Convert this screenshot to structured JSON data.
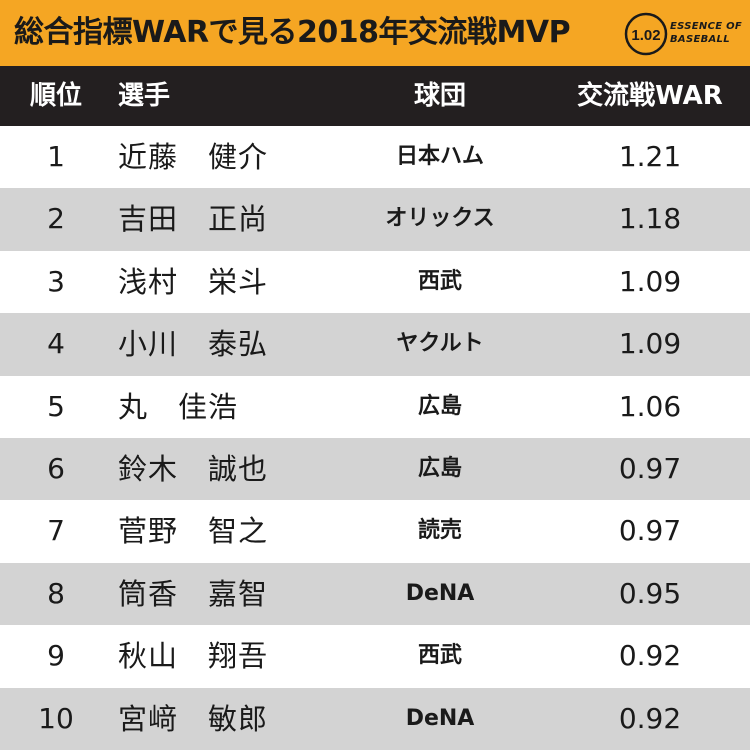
{
  "title": "総合指標WARで見る2018年交流戦MVP",
  "logo": {
    "number": "1.02",
    "line1": "ESSENCE OF",
    "line2": "BASEBALL"
  },
  "colors": {
    "title_bar": "#f5a623",
    "header_bg": "#231f20",
    "row_alt": "#d3d3d3"
  },
  "headers": {
    "rank": "順位",
    "player": "選手",
    "team": "球団",
    "war": "交流戦WAR"
  },
  "rows": [
    {
      "rank": "1",
      "player": "近藤　健介",
      "team": "日本ハム",
      "war": "1.21"
    },
    {
      "rank": "2",
      "player": "吉田　正尚",
      "team": "オリックス",
      "war": "1.18"
    },
    {
      "rank": "3",
      "player": "浅村　栄斗",
      "team": "西武",
      "war": "1.09"
    },
    {
      "rank": "4",
      "player": "小川　泰弘",
      "team": "ヤクルト",
      "war": "1.09"
    },
    {
      "rank": "5",
      "player": "丸　佳浩",
      "team": "広島",
      "war": "1.06"
    },
    {
      "rank": "6",
      "player": "鈴木　誠也",
      "team": "広島",
      "war": "0.97"
    },
    {
      "rank": "7",
      "player": "菅野　智之",
      "team": "読売",
      "war": "0.97"
    },
    {
      "rank": "8",
      "player": "筒香　嘉智",
      "team": "DeNA",
      "war": "0.95"
    },
    {
      "rank": "9",
      "player": "秋山　翔吾",
      "team": "西武",
      "war": "0.92"
    },
    {
      "rank": "10",
      "player": "宮﨑　敏郎",
      "team": "DeNA",
      "war": "0.92"
    }
  ]
}
